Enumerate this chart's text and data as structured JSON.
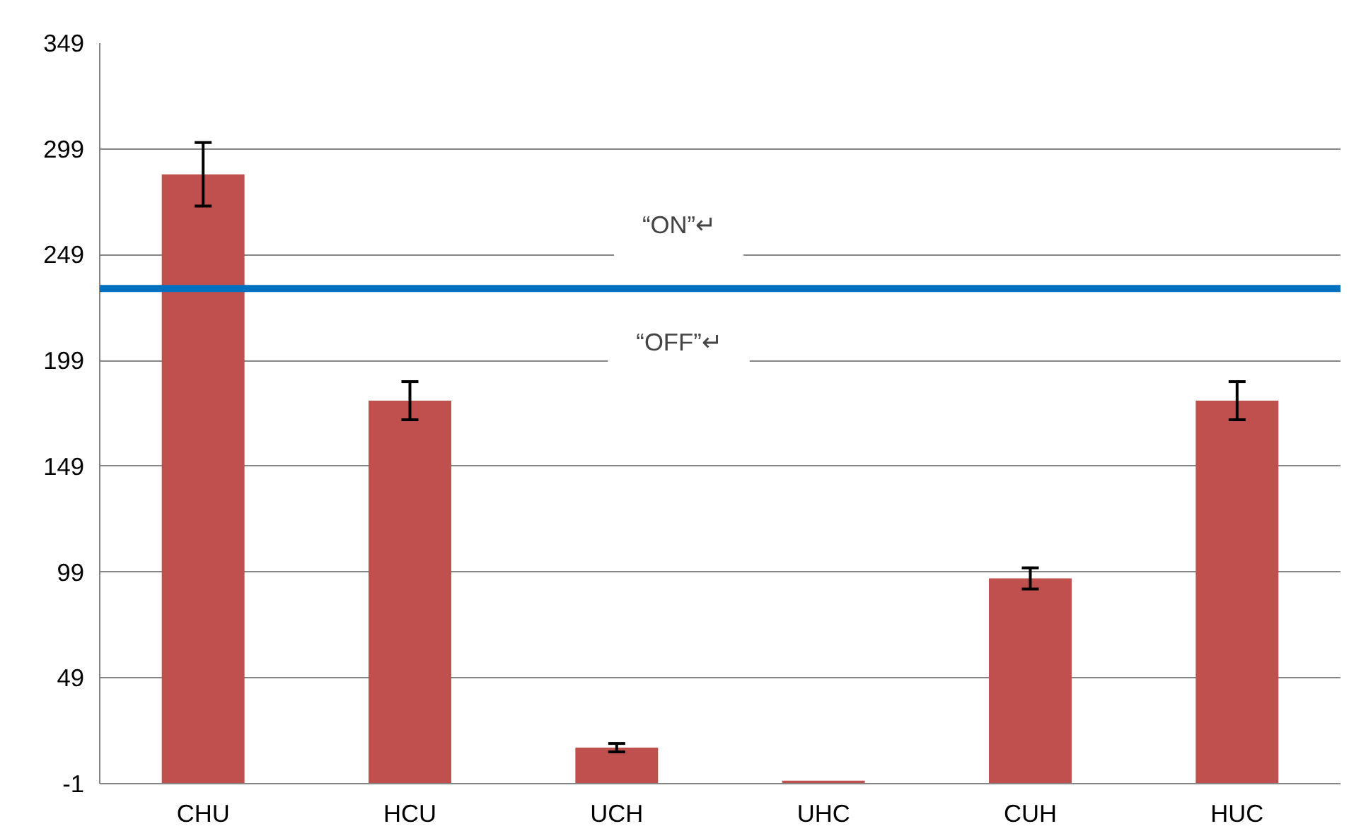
{
  "chart_data": {
    "type": "bar",
    "categories": [
      "CHU",
      "HCU",
      "UCH",
      "UHC",
      "CUH",
      "HUC"
    ],
    "values": [
      287,
      180,
      16,
      0.4,
      96,
      180
    ],
    "errors": [
      15,
      9,
      2,
      null,
      5,
      9
    ],
    "color": "#c0504d",
    "ylim": [
      -1,
      349
    ],
    "yticks": [
      -1,
      49,
      99,
      149,
      199,
      249,
      299,
      349
    ],
    "grid": "y",
    "ref_lines": [
      {
        "axis": "y",
        "value": 233,
        "color": "#0070c0"
      }
    ],
    "annotations": [
      "“ON”↵",
      "“OFF”↵"
    ]
  }
}
